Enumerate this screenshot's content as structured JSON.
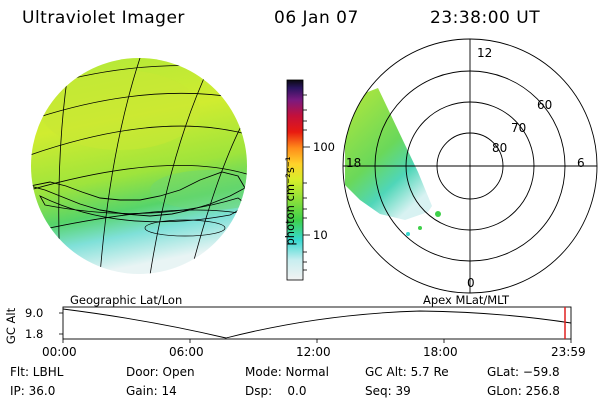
{
  "header": {
    "title": "Ultraviolet Imager",
    "date": "06 Jan 07",
    "time": "23:38:00 UT"
  },
  "left_panel": {
    "label": "Geographic Lat/Lon"
  },
  "right_panel": {
    "label": "Apex MLat/MLT",
    "mlt_labels": [
      "12",
      "18",
      "6",
      "0"
    ],
    "lat_labels": [
      "60",
      "70",
      "80"
    ]
  },
  "colorbar": {
    "unit": "photon cm⁻²s⁻¹",
    "ticks": [
      "100",
      "10"
    ],
    "scale": "log",
    "colors": [
      "#f2f2f2",
      "#c8eef0",
      "#38d8d0",
      "#3fd04a",
      "#8be03a",
      "#d7ee2a",
      "#ffd22a",
      "#ff8c1a",
      "#e81a10",
      "#c4103a",
      "#7a1a80",
      "#2a1460",
      "#0a0a10"
    ]
  },
  "altitude_plot": {
    "ylabel": "GC Alt",
    "yticks": [
      "9.0",
      "1.8"
    ],
    "xticks": [
      "00:00",
      "06:00",
      "12:00",
      "18:00",
      "23:59"
    ],
    "current_time_marker_color": "#e02020"
  },
  "status": {
    "flt": "Flt: LBHL",
    "ip": "IP: 36.0",
    "door": "Door: Open",
    "gain": "Gain: 14",
    "mode": "Mode: Normal",
    "dsp": "Dsp:    0.0",
    "gc_alt": "GC Alt: 5.7 Re",
    "seq": "Seq: 39",
    "glat": "GLat: −59.8",
    "glon": "GLon: 256.8"
  }
}
